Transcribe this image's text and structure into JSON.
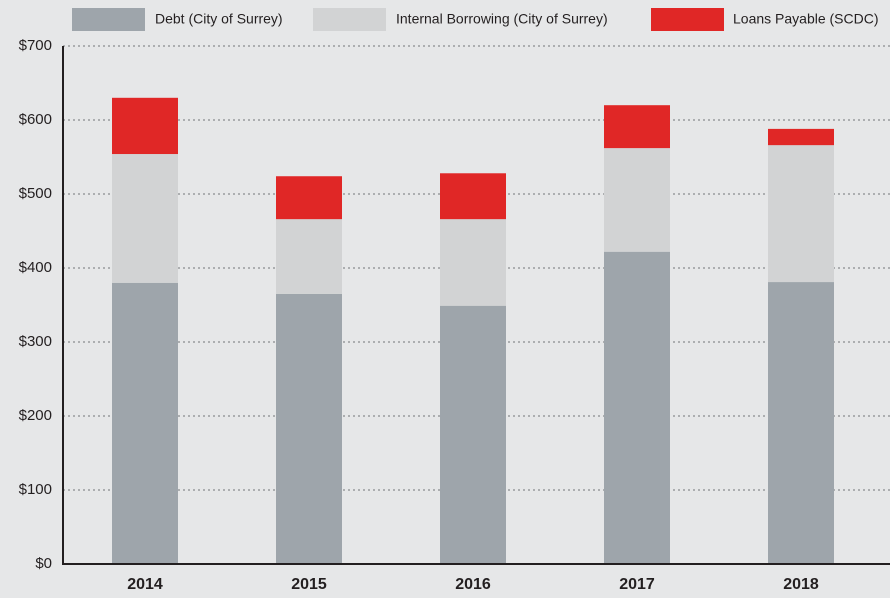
{
  "chart_data": {
    "type": "stacked_bar",
    "categories": [
      "2014",
      "2015",
      "2016",
      "2017",
      "2018"
    ],
    "series": [
      {
        "name": "Debt (City of Surrey)",
        "color": "#9ea5ab",
        "values": [
          380,
          365,
          349,
          422,
          381
        ]
      },
      {
        "name": "Internal Borrowing (City of Surrey)",
        "color": "#d2d3d4",
        "values": [
          174,
          101,
          117,
          140,
          185
        ]
      },
      {
        "name": "Loans Payable (SCDC)",
        "color": "#e02726",
        "values": [
          76,
          58,
          62,
          58,
          22
        ]
      }
    ],
    "ylim": [
      0,
      700
    ],
    "yticks": [
      {
        "value": 0,
        "label": "$0"
      },
      {
        "value": 100,
        "label": "$100"
      },
      {
        "value": 200,
        "label": "$200"
      },
      {
        "value": 300,
        "label": "$300"
      },
      {
        "value": 400,
        "label": "$400"
      },
      {
        "value": 500,
        "label": "$500"
      },
      {
        "value": 600,
        "label": "$600"
      },
      {
        "value": 700,
        "label": "$700"
      }
    ],
    "grid": true,
    "legend": "top"
  }
}
